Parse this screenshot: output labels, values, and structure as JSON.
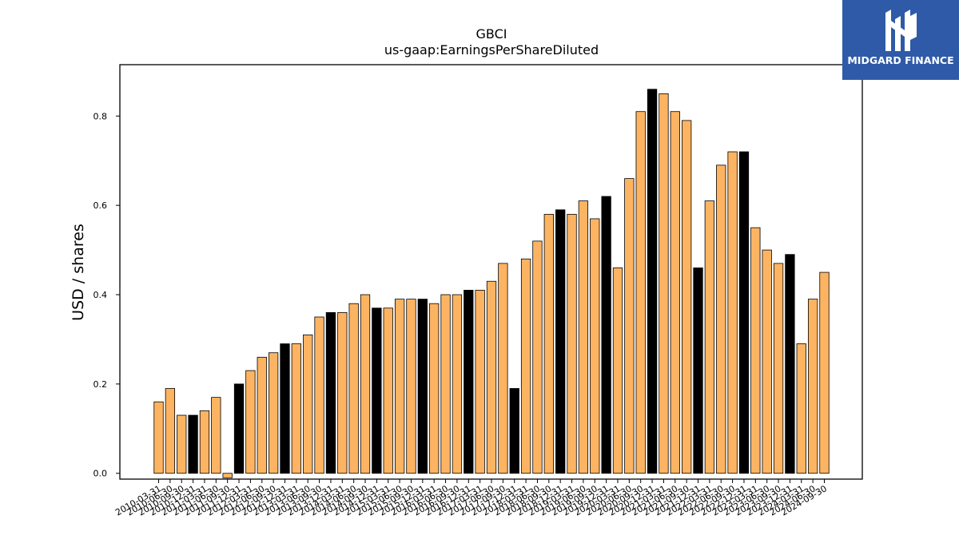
{
  "chart_data": {
    "type": "bar",
    "title": "GBCI",
    "subtitle": "us-gaap:EarningsPerShareDiluted",
    "xlabel": "",
    "ylabel": "USD / shares",
    "ylim": [
      -0.013,
      0.915
    ],
    "yticks": [
      0.0,
      0.2,
      0.4,
      0.6,
      0.8
    ],
    "ytick_labels": [
      "0.0",
      "0.2",
      "0.4",
      "0.6",
      "0.8"
    ],
    "grid": false,
    "colors": {
      "quarter": "#FDB462",
      "annual": "#000000",
      "edge": "#000000"
    },
    "categories": [
      "2010-03-31",
      "2010-06-30",
      "2010-09-30",
      "2010-12-31",
      "2011-03-31",
      "2011-06-30",
      "2011-09-30",
      "2011-12-31",
      "2012-03-31",
      "2012-06-30",
      "2012-09-30",
      "2012-12-31",
      "2013-03-31",
      "2013-06-30",
      "2013-09-30",
      "2013-12-31",
      "2014-03-31",
      "2014-06-30",
      "2014-09-30",
      "2014-12-31",
      "2015-03-31",
      "2015-06-30",
      "2015-09-30",
      "2015-12-31",
      "2016-03-31",
      "2016-06-30",
      "2016-09-30",
      "2016-12-31",
      "2017-03-31",
      "2017-06-30",
      "2017-09-30",
      "2017-12-31",
      "2018-03-31",
      "2018-06-30",
      "2018-09-30",
      "2018-12-31",
      "2019-03-31",
      "2019-06-30",
      "2019-09-30",
      "2019-12-31",
      "2020-03-31",
      "2020-06-30",
      "2020-09-30",
      "2020-12-31",
      "2021-03-31",
      "2021-06-30",
      "2021-09-30",
      "2021-12-31",
      "2022-03-31",
      "2022-06-30",
      "2022-09-30",
      "2022-12-31",
      "2023-03-31",
      "2023-06-30",
      "2023-09-30",
      "2023-12-31",
      "2024-03-31",
      "2024-06-30",
      "2024-09-30"
    ],
    "values": [
      0.16,
      0.19,
      0.13,
      0.13,
      0.14,
      0.17,
      -0.01,
      0.2,
      0.23,
      0.26,
      0.27,
      0.29,
      0.29,
      0.31,
      0.35,
      0.36,
      0.36,
      0.38,
      0.4,
      0.37,
      0.37,
      0.39,
      0.39,
      0.39,
      0.38,
      0.4,
      0.4,
      0.41,
      0.41,
      0.43,
      0.47,
      0.19,
      0.48,
      0.52,
      0.58,
      0.59,
      0.58,
      0.61,
      0.57,
      0.62,
      0.46,
      0.66,
      0.81,
      0.86,
      0.85,
      0.81,
      0.79,
      0.46,
      0.61,
      0.69,
      0.72,
      0.72,
      0.55,
      0.5,
      0.47,
      0.49,
      0.29,
      0.39,
      0.45
    ],
    "is_annual": [
      false,
      false,
      false,
      true,
      false,
      false,
      false,
      true,
      false,
      false,
      false,
      true,
      false,
      false,
      false,
      true,
      false,
      false,
      false,
      true,
      false,
      false,
      false,
      true,
      false,
      false,
      false,
      true,
      false,
      false,
      false,
      true,
      false,
      false,
      false,
      true,
      false,
      false,
      false,
      true,
      false,
      false,
      false,
      true,
      false,
      false,
      false,
      true,
      false,
      false,
      false,
      true,
      false,
      false,
      false,
      true,
      false,
      false,
      false
    ]
  },
  "logo": {
    "text": "MIDGARD FINANCE",
    "icon": "midgard-logo-icon",
    "background": "#2e5aa8"
  }
}
